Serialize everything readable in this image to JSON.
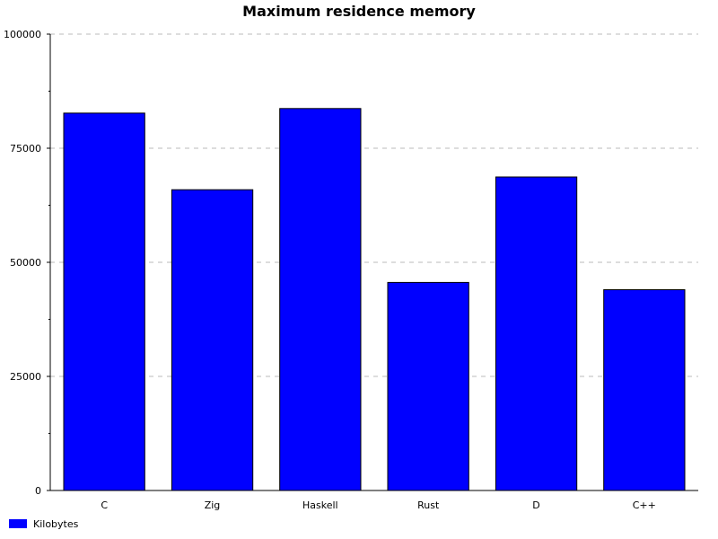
{
  "chart_data": {
    "type": "bar",
    "title": "Maximum residence memory",
    "categories": [
      "C",
      "Zig",
      "Haskell",
      "Rust",
      "D",
      "C++"
    ],
    "series": [
      {
        "name": "Kilobytes",
        "values": [
          82700,
          65900,
          83700,
          45600,
          68700,
          44000
        ]
      }
    ],
    "ylim": [
      0,
      100000
    ],
    "y_ticks": [
      0,
      25000,
      50000,
      75000,
      100000
    ],
    "y_tick_labels": [
      "0",
      "25000",
      "50000",
      "75000",
      "100000"
    ],
    "grid": true,
    "legend_position": "bottom-left",
    "colors": {
      "bar": "#0000ff",
      "bar_edge": "#000000",
      "axis": "#000000",
      "grid": "#bbbbbb"
    }
  }
}
